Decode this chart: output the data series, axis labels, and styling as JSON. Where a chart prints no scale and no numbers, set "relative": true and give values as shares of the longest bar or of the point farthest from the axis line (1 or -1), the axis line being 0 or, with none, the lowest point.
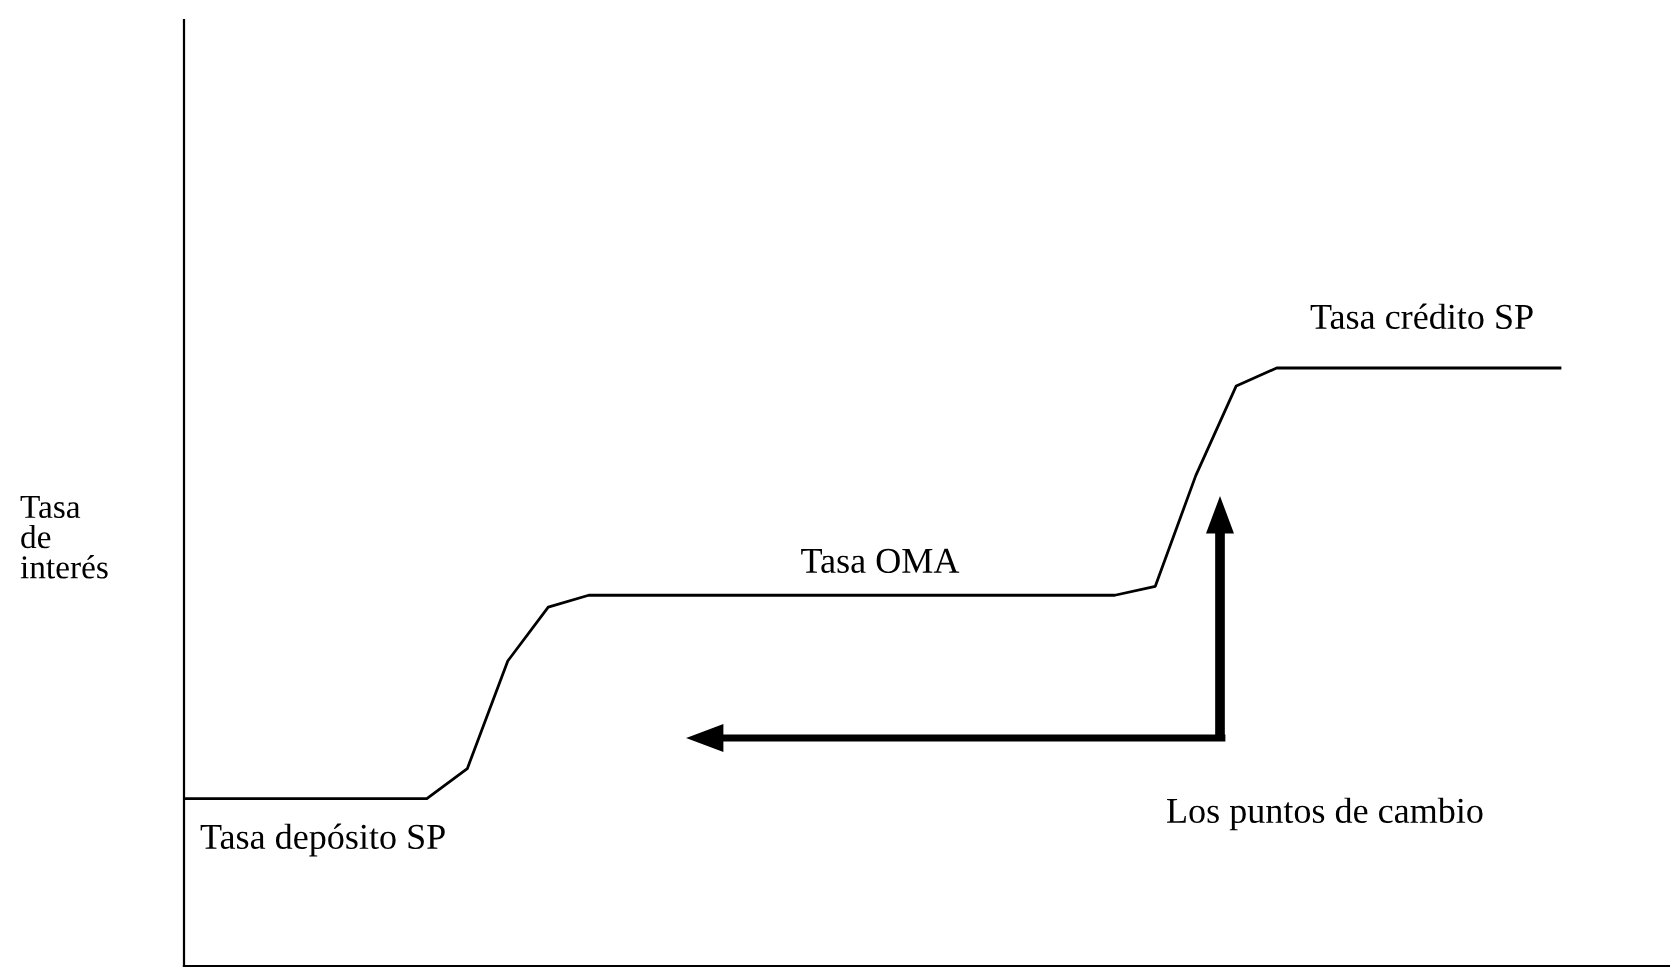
{
  "chart_data": {
    "type": "line",
    "relative": true,
    "ylabel": "Tasa\nde\ninterés",
    "categories": [
      null,
      null,
      null,
      null,
      null,
      null,
      null,
      null,
      null,
      null,
      null,
      null,
      null,
      null,
      null,
      null,
      null,
      null,
      null,
      null,
      null,
      null,
      null,
      null,
      null,
      null,
      null,
      null,
      null,
      null,
      null,
      null,
      null,
      null,
      null
    ],
    "series": [
      {
        "color": "#000000",
        "values": [
          0.28,
          0.28,
          0.28,
          0.28,
          0.28,
          0.28,
          0.28,
          0.33,
          0.51,
          0.6,
          0.62,
          0.62,
          0.62,
          0.62,
          0.62,
          0.62,
          0.62,
          0.62,
          0.62,
          0.62,
          0.62,
          0.62,
          0.62,
          0.62,
          0.635,
          0.82,
          0.97,
          1,
          1,
          1,
          1,
          1,
          1,
          1,
          1
        ]
      }
    ],
    "annotations": [
      "Tasa depósito SP",
      "Tasa OMA",
      "Tasa crédito SP",
      "Los puntos de cambio"
    ],
    "marker": "none",
    "line_style": "solid",
    "grid": false,
    "legend": false
  }
}
